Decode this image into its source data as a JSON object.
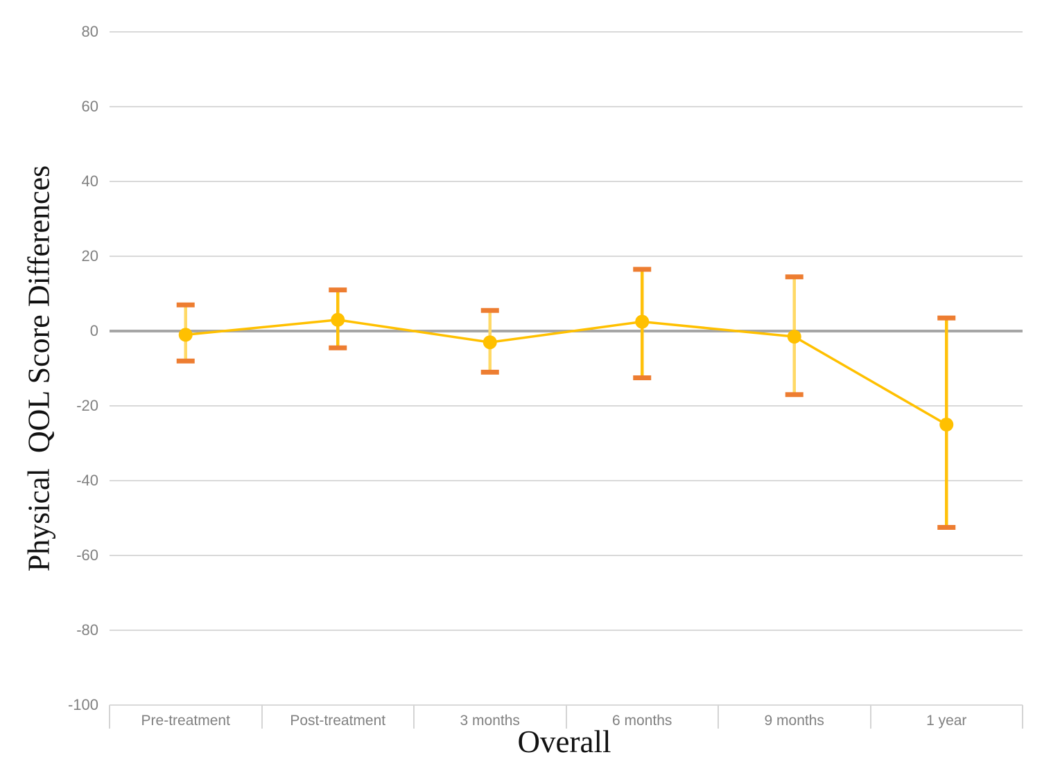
{
  "chart_data": {
    "type": "line",
    "title": "",
    "xlabel": "Overall",
    "ylabel": "Physical  QOL Score Differences",
    "categories": [
      "Pre-treatment",
      "Post-treatment",
      "3 months",
      "6 months",
      "9 months",
      "1 year"
    ],
    "series": [
      {
        "name": "Physical QOL score differences",
        "values": [
          -1,
          3,
          -3,
          2.5,
          -1.5,
          -25
        ],
        "error_upper": [
          7,
          11,
          5.5,
          16.5,
          14.5,
          3.5
        ],
        "error_lower": [
          -8,
          -4.5,
          -11,
          -12.5,
          -17,
          -52.5
        ]
      }
    ],
    "ylim": [
      -100,
      80
    ],
    "y_ticks": [
      80,
      60,
      40,
      20,
      0,
      -20,
      -40,
      -60,
      -80,
      -100
    ],
    "grid": "horizontal",
    "legend": "none",
    "colors": {
      "series_line": "#FFC000",
      "marker": "#FFC000",
      "error_cap": "#ED7D31",
      "error_line_colors": [
        "#FFD966",
        "#FFC10A",
        "#FFD966",
        "#FFC10A",
        "#FFD966",
        "#FFC10A"
      ],
      "gridline": "#D9D9D9",
      "zero_line": "#A6A6A6",
      "axis_line": "#D4D4D4",
      "tick_text": "#808080",
      "title_text": "#111111"
    }
  }
}
